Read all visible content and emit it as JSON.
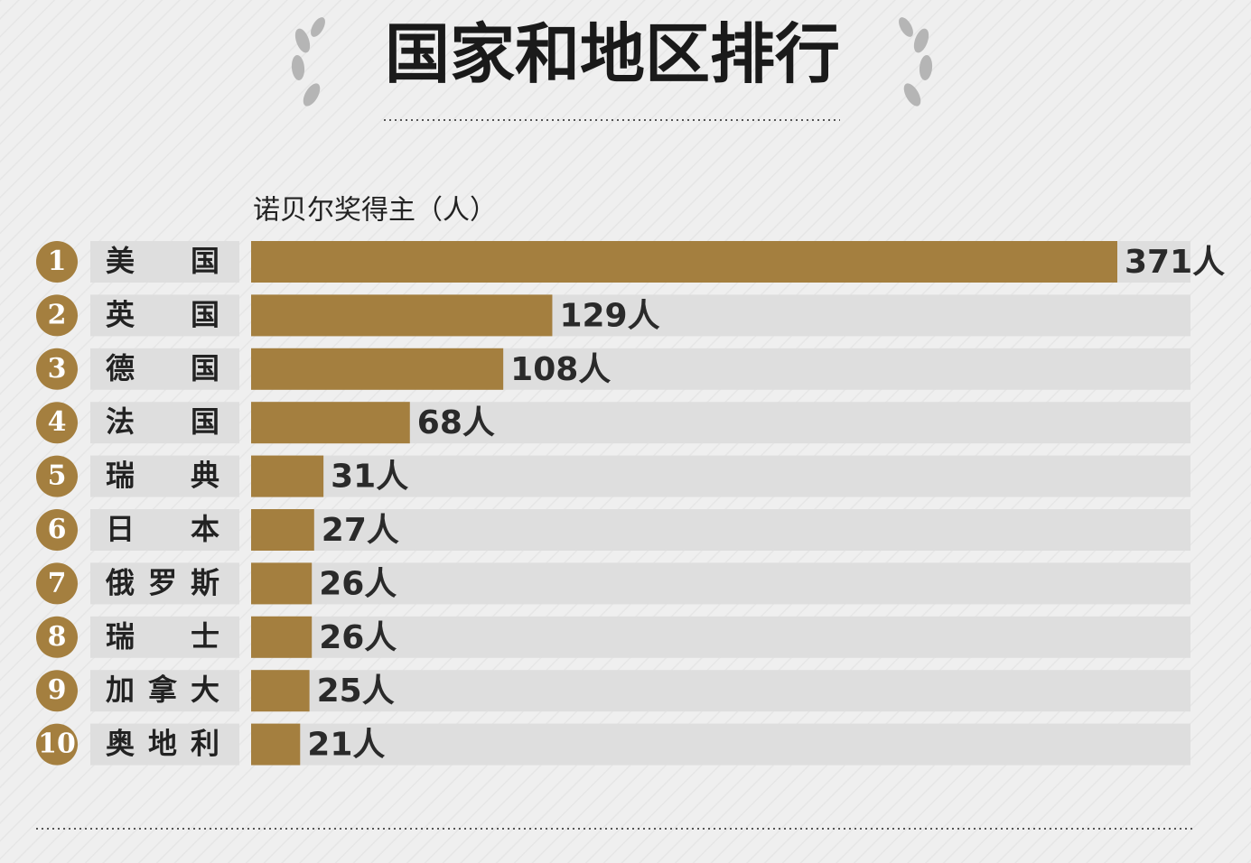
{
  "chart_data": {
    "type": "bar",
    "orientation": "horizontal",
    "title": "国家和地区排行",
    "subtitle": "诺贝尔奖得主（人）",
    "ranks": [
      1,
      2,
      3,
      4,
      5,
      6,
      7,
      8,
      9,
      10
    ],
    "categories": [
      "美国",
      "英国",
      "德国",
      "法国",
      "瑞典",
      "日本",
      "俄罗斯",
      "瑞士",
      "加拿大",
      "奥地利"
    ],
    "values": [
      371,
      129,
      108,
      68,
      31,
      27,
      26,
      26,
      25,
      21
    ],
    "value_labels": [
      "371人",
      "129人",
      "108人",
      "68人",
      "31人",
      "27人",
      "26人",
      "26人",
      "25人",
      "21人"
    ],
    "color": "#a47f3f"
  }
}
